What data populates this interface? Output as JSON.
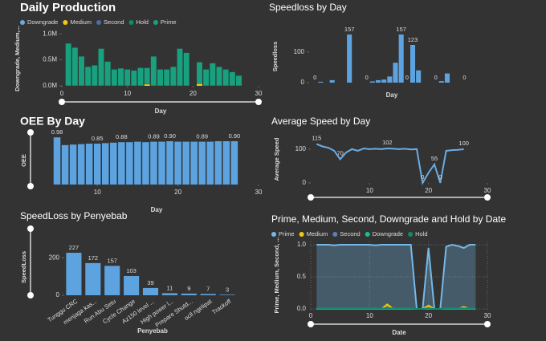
{
  "chart_data": [
    {
      "type": "bar",
      "title": "Daily Production",
      "stacked": true,
      "legend": "top-left",
      "x": [
        1,
        2,
        3,
        4,
        5,
        6,
        7,
        8,
        9,
        10,
        11,
        12,
        13,
        14,
        15,
        16,
        17,
        18,
        19,
        20,
        21,
        22,
        23,
        24,
        25,
        26,
        27
      ],
      "series": [
        {
          "name": "Downgrade",
          "color": "#6fa8dc",
          "values": [
            0,
            0,
            0,
            0,
            0,
            0,
            0,
            0,
            0,
            0,
            0,
            0,
            0,
            0,
            0,
            0,
            0,
            0,
            0,
            0,
            0,
            0,
            0,
            0,
            0,
            0,
            0
          ]
        },
        {
          "name": "Medium",
          "color": "#f2c811",
          "values": [
            0,
            0,
            0,
            0,
            0,
            0,
            0,
            0,
            0,
            0,
            0,
            0,
            30000,
            0,
            0,
            0,
            0,
            0,
            0,
            0,
            40000,
            0,
            0,
            0,
            0,
            0,
            0
          ]
        },
        {
          "name": "Second",
          "color": "#4a6fa5",
          "values": [
            0,
            0,
            0,
            0,
            0,
            0,
            0,
            0,
            0,
            0,
            0,
            0,
            0,
            0,
            0,
            0,
            0,
            0,
            0,
            0,
            0,
            0,
            0,
            0,
            0,
            0,
            0
          ]
        },
        {
          "name": "Hold",
          "color": "#0f8c6c",
          "values": [
            15000,
            15000,
            15000,
            15000,
            15000,
            15000,
            15000,
            15000,
            15000,
            15000,
            15000,
            15000,
            15000,
            15000,
            15000,
            15000,
            15000,
            15000,
            15000,
            0,
            15000,
            15000,
            15000,
            15000,
            15000,
            15000,
            15000
          ]
        },
        {
          "name": "Prime",
          "color": "#17a17f",
          "values": [
            800000,
            720000,
            550000,
            350000,
            380000,
            700000,
            450000,
            300000,
            320000,
            300000,
            280000,
            330000,
            300000,
            550000,
            300000,
            300000,
            350000,
            700000,
            620000,
            0,
            400000,
            300000,
            420000,
            350000,
            300000,
            250000,
            180000
          ]
        }
      ],
      "xlim": [
        0,
        30
      ],
      "xticks": [
        0,
        10,
        20,
        30
      ],
      "ylim": [
        0,
        1050000
      ],
      "yticks": [
        {
          "value": 0,
          "label": "0.0M"
        },
        {
          "value": 500000,
          "label": "0.5M"
        },
        {
          "value": 1000000,
          "label": "1.0M"
        }
      ],
      "x_label": "Day",
      "y_label": "Downgrade, Medium,..."
    },
    {
      "type": "bar",
      "title": "Speedloss by Day",
      "color": "#5da3e0",
      "x": [
        1,
        2,
        3,
        4,
        5,
        6,
        7,
        8,
        9,
        10,
        11,
        12,
        13,
        14,
        15,
        16,
        17,
        18,
        19,
        20,
        21,
        22,
        23,
        24,
        25,
        26,
        27
      ],
      "values": [
        0,
        3,
        0,
        8,
        0,
        0,
        157,
        0,
        0,
        0,
        4,
        8,
        10,
        20,
        65,
        157,
        0,
        123,
        40,
        0,
        0,
        0,
        5,
        30,
        0,
        0,
        0
      ],
      "value_labels": [
        "0",
        null,
        null,
        null,
        null,
        null,
        "157",
        null,
        null,
        "0",
        null,
        null,
        null,
        null,
        null,
        "157",
        "0",
        "123",
        null,
        null,
        null,
        "0",
        null,
        null,
        null,
        null,
        "0"
      ],
      "xlim": [
        0,
        30
      ],
      "ylim": [
        0,
        170
      ],
      "yticks": [
        0,
        100
      ],
      "x_label": "Day",
      "y_label": "Speedloss"
    },
    {
      "type": "bar",
      "title": "OEE By Day",
      "color": "#5da3e0",
      "x": [
        5,
        6,
        7,
        8,
        9,
        10,
        11,
        12,
        13,
        14,
        15,
        16,
        17,
        18,
        19,
        20,
        21,
        22,
        23,
        24,
        25,
        26,
        27
      ],
      "values": [
        0.98,
        0.82,
        0.83,
        0.84,
        0.85,
        0.85,
        0.86,
        0.87,
        0.88,
        0.88,
        0.89,
        0.88,
        0.89,
        0.89,
        0.9,
        0.89,
        0.89,
        0.89,
        0.89,
        0.89,
        0.9,
        0.9,
        0.9
      ],
      "value_labels": [
        "0.98",
        null,
        null,
        null,
        null,
        "0.85",
        null,
        null,
        "0.88",
        null,
        null,
        null,
        "0.89",
        null,
        "0.90",
        null,
        null,
        null,
        "0.89",
        null,
        null,
        null,
        "0.90"
      ],
      "xlim": [
        4.4,
        30
      ],
      "xticks": [
        10,
        20,
        30
      ],
      "ylim": [
        0,
        1
      ],
      "x_label": "Day",
      "y_label": "OEE"
    },
    {
      "type": "line",
      "title": "Average Speed by Day",
      "color": "#6aade4",
      "x": [
        1,
        2,
        3,
        4,
        5,
        6,
        7,
        8,
        9,
        10,
        11,
        12,
        13,
        14,
        15,
        16,
        17,
        18,
        19,
        20,
        21,
        22,
        23,
        24,
        25,
        26
      ],
      "values": [
        115,
        108,
        104,
        95,
        70,
        90,
        100,
        95,
        102,
        100,
        101,
        100,
        102,
        101,
        100,
        101,
        99,
        100,
        0,
        30,
        55,
        0,
        95,
        97,
        98,
        100
      ],
      "value_labels": [
        "115",
        null,
        null,
        null,
        "70",
        null,
        null,
        null,
        null,
        null,
        null,
        null,
        "102",
        null,
        null,
        null,
        null,
        null,
        "0",
        null,
        "55",
        "0",
        null,
        null,
        null,
        "100"
      ],
      "xlim": [
        0,
        30
      ],
      "xticks": [
        10,
        20,
        30
      ],
      "ylim": [
        0,
        140
      ],
      "yticks": [
        0,
        100
      ],
      "y_label": "Average Speed"
    },
    {
      "type": "bar",
      "title": "SpeedLoss by Penyebab",
      "color": "#5da3e0",
      "data_labels": true,
      "categories": [
        "Tunggu CRC",
        "menjaga kas...",
        "Run Abu Setu",
        "Cycle Change",
        "Az150 level ...",
        "High power l...",
        "Prepare Shutd...",
        "ocll ngelipat",
        "Trackoff"
      ],
      "values": [
        227,
        172,
        157,
        103,
        39,
        11,
        9,
        7,
        3
      ],
      "ylim": [
        0,
        300
      ],
      "yticks": [
        0,
        200
      ],
      "x_label": "Penyebab",
      "y_label": "SpeedLoss"
    },
    {
      "type": "area",
      "title": "Prime, Medium, Second, Downgrade and Hold by Date",
      "legend": "top-left",
      "grid": true,
      "x": [
        1,
        2,
        3,
        4,
        5,
        6,
        7,
        8,
        9,
        10,
        11,
        12,
        13,
        14,
        15,
        16,
        17,
        18,
        19,
        20,
        21,
        22,
        23,
        24,
        25,
        26,
        27,
        28
      ],
      "series": [
        {
          "name": "Prime",
          "color": "#74b9e8",
          "values": [
            1,
            1,
            1,
            0.99,
            1,
            1,
            1,
            1,
            1,
            1,
            0.99,
            1,
            1,
            1,
            1,
            1,
            1,
            0,
            0,
            0.95,
            0,
            0,
            0.97,
            1,
            0.98,
            0.95,
            1,
            1
          ]
        },
        {
          "name": "Medium",
          "color": "#f2c811",
          "values": [
            0,
            0,
            0,
            0,
            0,
            0,
            0,
            0,
            0,
            0,
            0,
            0,
            0.07,
            0,
            0,
            0,
            0,
            0,
            0,
            0.05,
            0,
            0,
            0,
            0,
            0,
            0.03,
            0,
            0
          ]
        },
        {
          "name": "Second",
          "color": "#5b7db8",
          "values": [
            0,
            0,
            0,
            0,
            0,
            0,
            0,
            0,
            0,
            0,
            0,
            0,
            0,
            0,
            0,
            0,
            0,
            0,
            0,
            0,
            0,
            0,
            0,
            0,
            0,
            0,
            0,
            0
          ]
        },
        {
          "name": "Downgrade",
          "color": "#1abc9c",
          "values": [
            0,
            0,
            0,
            0,
            0,
            0,
            0,
            0,
            0,
            0,
            0,
            0,
            0,
            0,
            0,
            0,
            0,
            0,
            0,
            0,
            0,
            0,
            0,
            0,
            0,
            0,
            0,
            0
          ]
        },
        {
          "name": "Hold",
          "color": "#0f8c6c",
          "values": [
            0.01,
            0.01,
            0.01,
            0.01,
            0.01,
            0.01,
            0.01,
            0.01,
            0.01,
            0.01,
            0.01,
            0.01,
            0.01,
            0.01,
            0.01,
            0.01,
            0.01,
            0,
            0,
            0.01,
            0,
            0,
            0.01,
            0.01,
            0.01,
            0.01,
            0.01,
            0.01
          ]
        }
      ],
      "xlim": [
        0,
        30
      ],
      "xticks": [
        0,
        10,
        20,
        30
      ],
      "ylim": [
        0,
        1.05
      ],
      "yticks": [
        {
          "value": 0,
          "label": "0.0"
        },
        {
          "value": 0.5,
          "label": "0.5"
        },
        {
          "value": 1,
          "label": "1.0"
        }
      ],
      "x_label": "Date",
      "y_label": "Prime, Medium, Second, ..."
    }
  ]
}
